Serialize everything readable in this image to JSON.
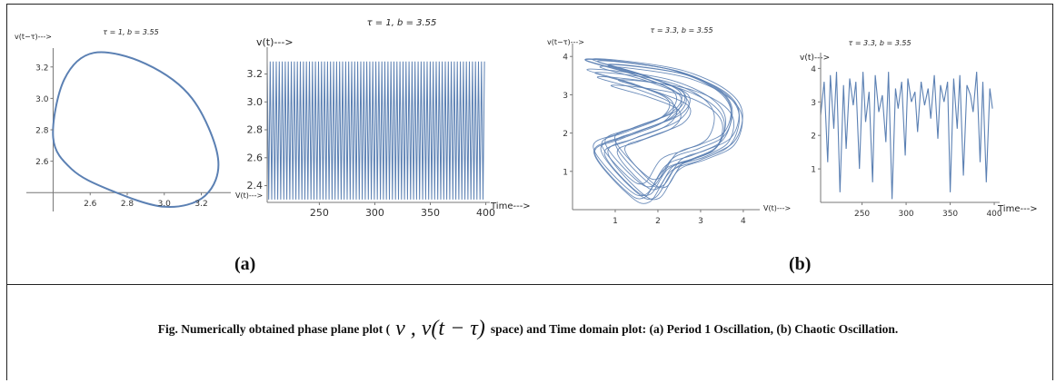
{
  "panel_labels": {
    "a": "(a)",
    "b": "(b)"
  },
  "caption": {
    "before": "Fig. Numerically obtained phase plane plot (",
    "math": " v , v(t − τ) ",
    "after": " space) and Time domain plot: (a) Period 1 Oscillation, (b) Chaotic Oscillation."
  },
  "colors": {
    "series": "#5b80b3",
    "axis": "#777777"
  },
  "chart_data": [
    {
      "id": "phase_a",
      "type": "line",
      "title": "τ = 1, b = 3.55",
      "xlabel": "V(t)--->",
      "ylabel": "v(t−τ)--->",
      "xlim": [
        2.28,
        3.32
      ],
      "ylim": [
        2.28,
        3.32
      ],
      "axis_cross": {
        "x": 2.4,
        "y": 2.4
      },
      "xticks": [
        2.6,
        2.8,
        3.0,
        3.2
      ],
      "yticks": [
        2.6,
        2.8,
        3.0,
        3.2
      ],
      "series": [
        {
          "kind": "closed-orbit",
          "points": [
            [
              2.4,
              2.75
            ],
            [
              2.46,
              3.12
            ],
            [
              2.62,
              3.29
            ],
            [
              2.9,
              3.22
            ],
            [
              3.15,
              3.0
            ],
            [
              3.29,
              2.62
            ],
            [
              3.22,
              2.38
            ],
            [
              3.0,
              2.31
            ],
            [
              2.7,
              2.42
            ],
            [
              2.5,
              2.55
            ]
          ]
        }
      ]
    },
    {
      "id": "time_a",
      "type": "line",
      "title": "τ = 1, b = 3.55",
      "ylabel": "v(t)--->",
      "xlabel": "Time--->",
      "xlim": [
        203,
        402
      ],
      "ylim": [
        2.28,
        3.34
      ],
      "xticks": [
        250,
        300,
        350,
        400
      ],
      "yticks": [
        2.4,
        2.6,
        2.8,
        3.0,
        3.2
      ],
      "series": [
        {
          "kind": "periodic",
          "min": 2.3,
          "max": 3.29,
          "period": 2.72,
          "t_start": 203,
          "t_end": 400
        }
      ]
    },
    {
      "id": "phase_b",
      "type": "line",
      "title": "τ = 3.3, b = 3.55",
      "xlabel": "V(t)--->",
      "ylabel": "v(t−τ)--->",
      "xlim": [
        0,
        4.3
      ],
      "ylim": [
        0,
        4.1
      ],
      "xticks": [
        1,
        2,
        3,
        4
      ],
      "yticks": [
        1,
        2,
        3,
        4
      ],
      "series": [
        {
          "kind": "chaotic-attractor",
          "loop": [
            [
              0.3,
              3.9
            ],
            [
              1.2,
              3.85
            ],
            [
              2.5,
              3.6
            ],
            [
              3.5,
              3.1
            ],
            [
              3.9,
              2.5
            ],
            [
              3.7,
              1.7
            ],
            [
              3.0,
              1.3
            ],
            [
              2.3,
              1.0
            ],
            [
              1.8,
              0.2
            ],
            [
              1.3,
              0.4
            ],
            [
              0.5,
              1.5
            ],
            [
              1.2,
              1.9
            ],
            [
              2.3,
              2.4
            ],
            [
              2.5,
              3.0
            ],
            [
              1.5,
              3.5
            ]
          ]
        }
      ]
    },
    {
      "id": "time_b",
      "type": "line",
      "title": "τ = 3.3, b = 3.55",
      "ylabel": "v(t)--->",
      "xlabel": "Time--->",
      "xlim": [
        203,
        402
      ],
      "ylim": [
        0,
        4.2
      ],
      "xticks": [
        250,
        300,
        350,
        400
      ],
      "yticks": [
        1,
        2,
        3,
        4
      ],
      "series": [
        {
          "kind": "chaotic",
          "t": [
            203,
            207,
            211,
            214,
            218,
            221,
            225,
            229,
            232,
            236,
            240,
            243,
            247,
            251,
            254,
            258,
            262,
            265,
            269,
            273,
            277,
            280,
            284,
            288,
            291,
            295,
            299,
            302,
            306,
            310,
            313,
            317,
            321,
            325,
            328,
            332,
            336,
            339,
            343,
            347,
            350,
            354,
            358,
            361,
            365,
            369,
            373,
            376,
            380,
            384,
            387,
            391,
            395,
            398
          ],
          "v": [
            2.6,
            3.6,
            1.2,
            3.8,
            2.2,
            3.9,
            0.3,
            3.5,
            1.6,
            3.7,
            2.9,
            3.6,
            1.0,
            3.9,
            2.4,
            3.3,
            0.6,
            3.8,
            2.7,
            3.2,
            1.8,
            3.9,
            0.1,
            3.4,
            2.8,
            3.6,
            1.4,
            3.7,
            3.0,
            3.3,
            2.1,
            3.6,
            2.9,
            3.4,
            2.5,
            3.8,
            1.9,
            3.5,
            3.0,
            3.6,
            0.3,
            3.7,
            2.2,
            3.8,
            0.8,
            3.5,
            3.2,
            2.7,
            3.9,
            1.2,
            3.6,
            0.6,
            3.4,
            2.8
          ]
        }
      ]
    }
  ]
}
